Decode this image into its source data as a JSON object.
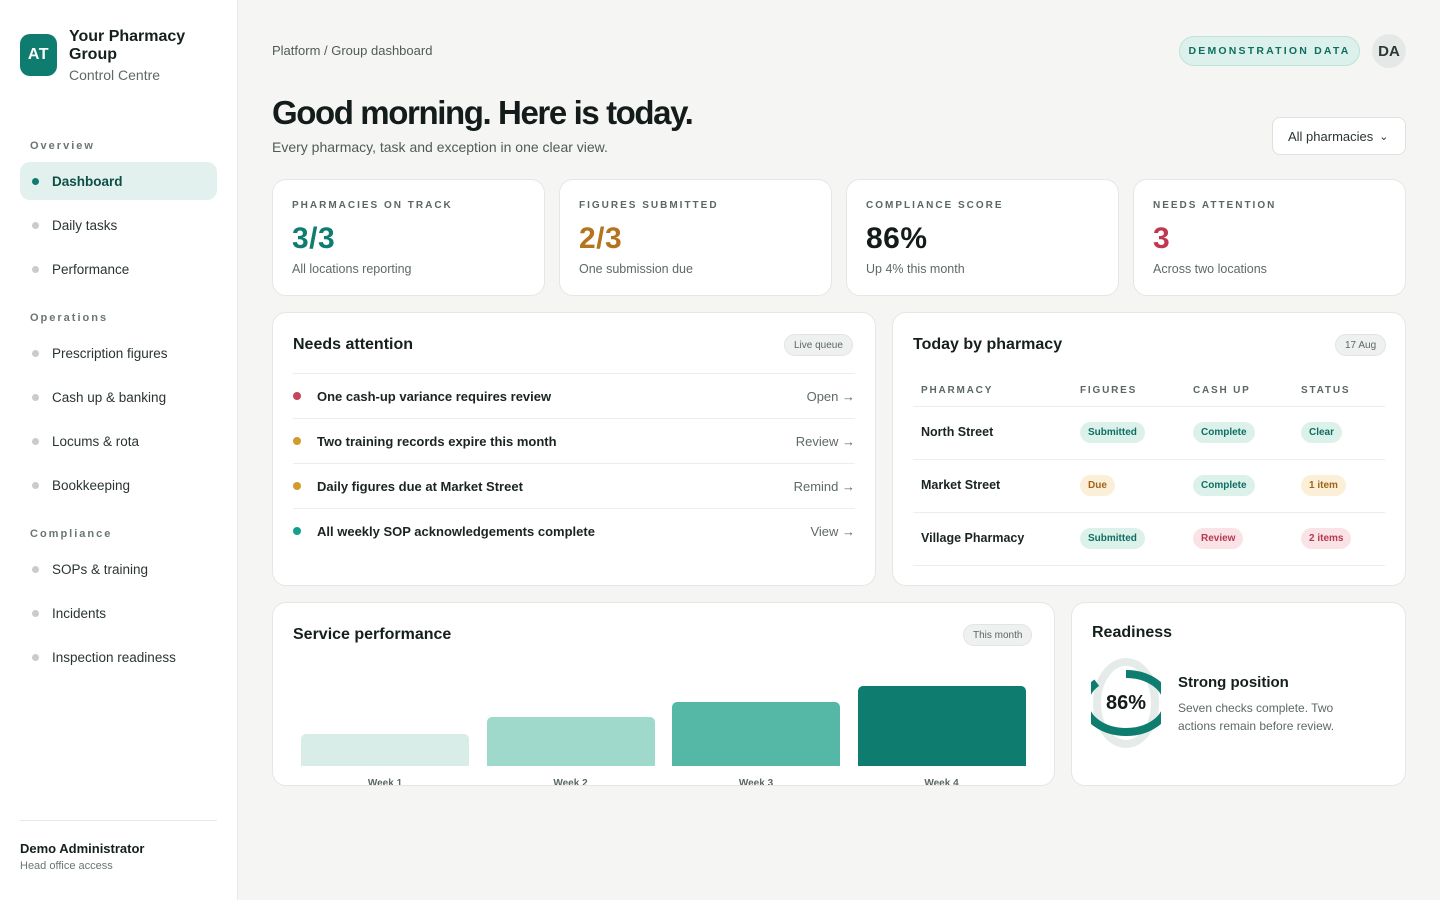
{
  "brand": {
    "logo": "AT",
    "name": "Your Pharmacy Group",
    "subtitle": "Control Centre"
  },
  "nav": {
    "overview_label": "Overview",
    "operations_label": "Operations",
    "compliance_label": "Compliance",
    "overview": [
      {
        "label": "Dashboard",
        "active": true
      },
      {
        "label": "Daily tasks"
      },
      {
        "label": "Performance"
      }
    ],
    "operations": [
      {
        "label": "Prescription figures"
      },
      {
        "label": "Cash up & banking"
      },
      {
        "label": "Locums & rota"
      },
      {
        "label": "Bookkeeping"
      }
    ],
    "compliance": [
      {
        "label": "SOPs & training"
      },
      {
        "label": "Incidents"
      },
      {
        "label": "Inspection readiness"
      }
    ]
  },
  "user": {
    "name": "Demo Administrator",
    "role": "Head office access",
    "initials": "DA"
  },
  "header": {
    "breadcrumb": "Platform / Group dashboard",
    "badge": "DEMONSTRATION DATA",
    "title": "Good morning. Here is today.",
    "subtitle": "Every pharmacy, task and exception in one clear view.",
    "filter": "All pharmacies",
    "filter_icon": "chevron-down-icon"
  },
  "stats": [
    {
      "label": "PHARMACIES ON TRACK",
      "value": "3/3",
      "note": "All locations reporting",
      "color": "#0e7c6f"
    },
    {
      "label": "FIGURES SUBMITTED",
      "value": "2/3",
      "note": "One submission due",
      "color": "#b5731e"
    },
    {
      "label": "COMPLIANCE SCORE",
      "value": "86%",
      "note": "Up 4% this month",
      "color": "#131c1a"
    },
    {
      "label": "NEEDS ATTENTION",
      "value": "3",
      "note": "Across two locations",
      "color": "#c0384f"
    }
  ],
  "attention": {
    "title": "Needs attention",
    "pill": "Live queue",
    "items": [
      {
        "text": "One cash-up variance requires review",
        "action": "Open →",
        "color": "#c9445a"
      },
      {
        "text": "Two training records expire this month",
        "action": "Review →",
        "color": "#d49a2e"
      },
      {
        "text": "Daily figures due at Market Street",
        "action": "Remind →",
        "color": "#d49a2e"
      },
      {
        "text": "All weekly SOP acknowledgements complete",
        "action": "View →",
        "color": "#12a08a"
      }
    ]
  },
  "today": {
    "title": "Today by pharmacy",
    "pill": "17 Aug",
    "columns": [
      "PHARMACY",
      "FIGURES",
      "CASH UP",
      "STATUS"
    ],
    "rows": [
      {
        "name": "North Street",
        "figures": "Submitted",
        "cash": "Complete",
        "status": "Clear"
      },
      {
        "name": "Market Street",
        "figures": "Due",
        "cash": "Complete",
        "status": "1 item"
      },
      {
        "name": "Village Pharmacy",
        "figures": "Submitted",
        "cash": "Review",
        "status": "2 items"
      }
    ]
  },
  "service": {
    "title": "Service performance",
    "pill": "This month",
    "chart_data": {
      "type": "bar",
      "categories": [
        "Week 1",
        "Week 2",
        "Week 3",
        "Week 4"
      ],
      "values": [
        32,
        49,
        64,
        80
      ],
      "ylim": [
        0,
        100
      ],
      "colors": [
        "#d8ede8",
        "#9fd9cb",
        "#55b8a7",
        "#0e7c6f"
      ]
    }
  },
  "readiness": {
    "title": "Readiness",
    "value": "86%",
    "percent": 86,
    "heading": "Strong position",
    "body": "Seven checks complete. Two actions remain before review."
  }
}
